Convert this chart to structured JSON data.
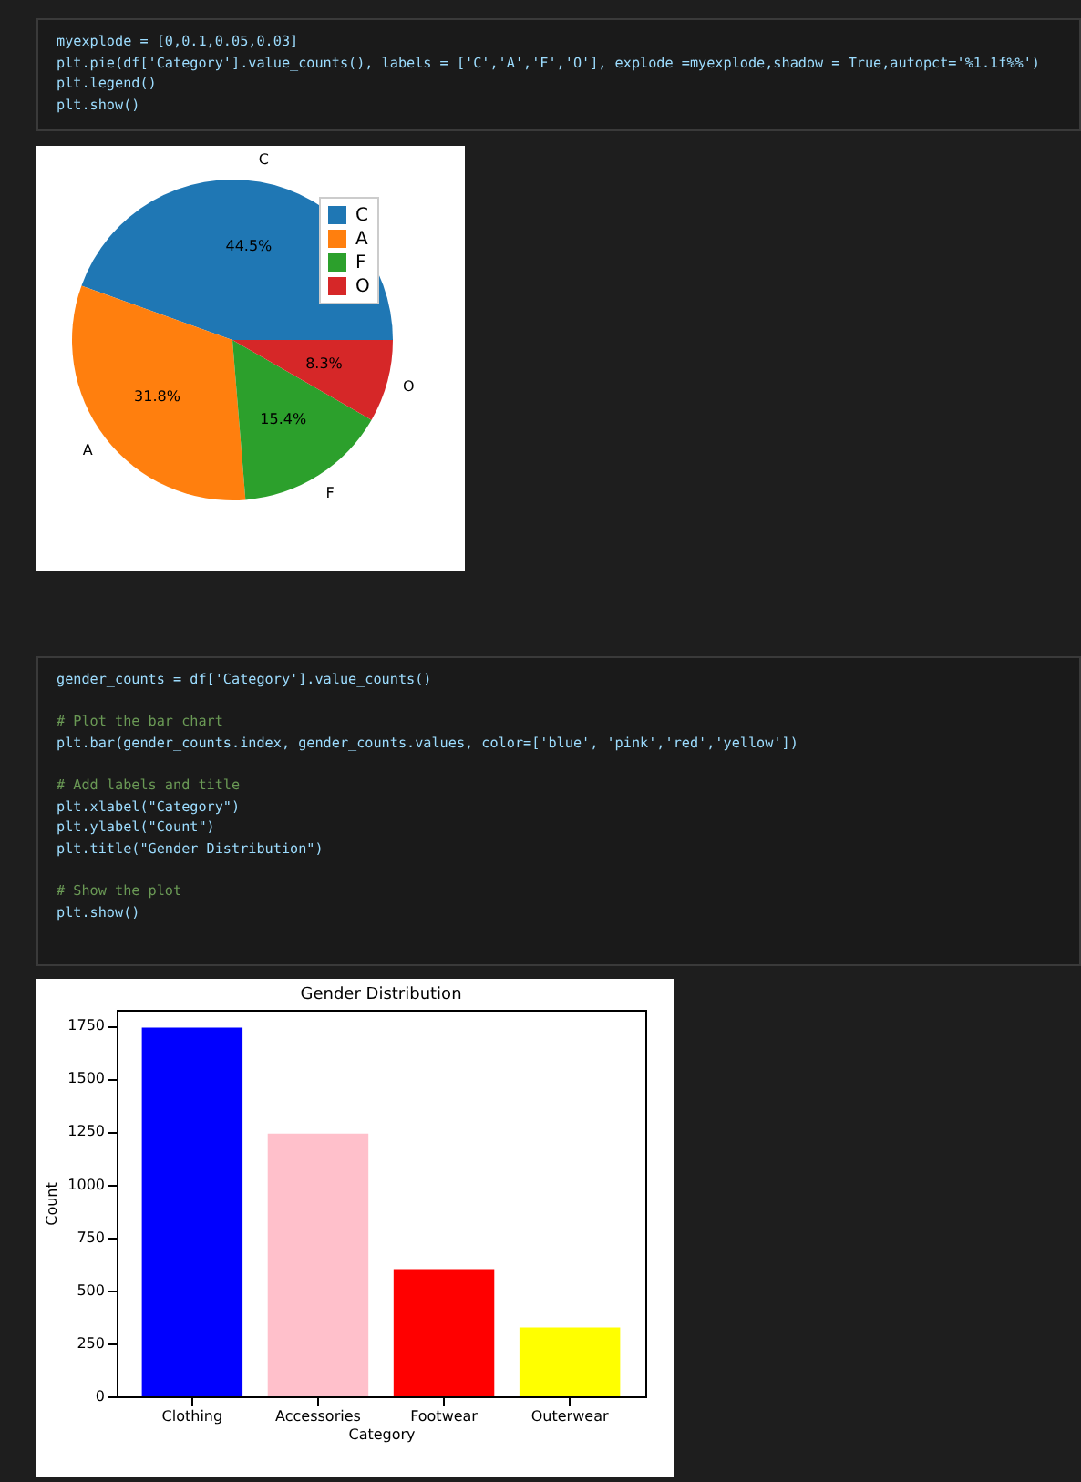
{
  "chart_data": [
    {
      "type": "pie",
      "categories": [
        "C",
        "A",
        "F",
        "O"
      ],
      "values": [
        44.5,
        31.8,
        15.4,
        8.3
      ],
      "colors": [
        "#1f77b4",
        "#ff7f0e",
        "#2ca02c",
        "#d62728"
      ],
      "value_labels": [
        "44.5%",
        "31.8%",
        "15.4%",
        "8.3%"
      ],
      "legend": "top right",
      "annotations": [
        "myexplode = [0,0.1,0.05,0.03]",
        "plt.pie(df['Category'].value_counts(), labels = ['C','A','F','O'], explode =myexplode,shadow = True,autopct='%1.1f%%')",
        "plt.legend()",
        "plt.show()"
      ]
    },
    {
      "type": "bar",
      "title": "Gender Distribution",
      "xlabel": "Category",
      "ylabel": "Count",
      "categories": [
        "Clothing",
        "Accessories",
        "Footwear",
        "Outerwear"
      ],
      "values": [
        1740,
        1240,
        600,
        325
      ],
      "colors": [
        "#0000ff",
        "#ffc0cb",
        "#ff0000",
        "#ffff00"
      ],
      "ylim": [
        0,
        1824
      ],
      "yticks": [
        0,
        250,
        500,
        750,
        1000,
        1250,
        1500,
        1750
      ],
      "grid": false,
      "annotations": [
        "gender_counts = df['Category'].value_counts()",
        "# Plot the bar chart",
        "plt.bar(gender_counts.index, gender_counts.values, color=['blue', 'pink','red','yellow'])",
        "# Add labels and title",
        "plt.xlabel(\"Category\")",
        "plt.ylabel(\"Count\")",
        "plt.title(\"Gender Distribution\")",
        "# Show the plot",
        "plt.show()"
      ]
    }
  ]
}
